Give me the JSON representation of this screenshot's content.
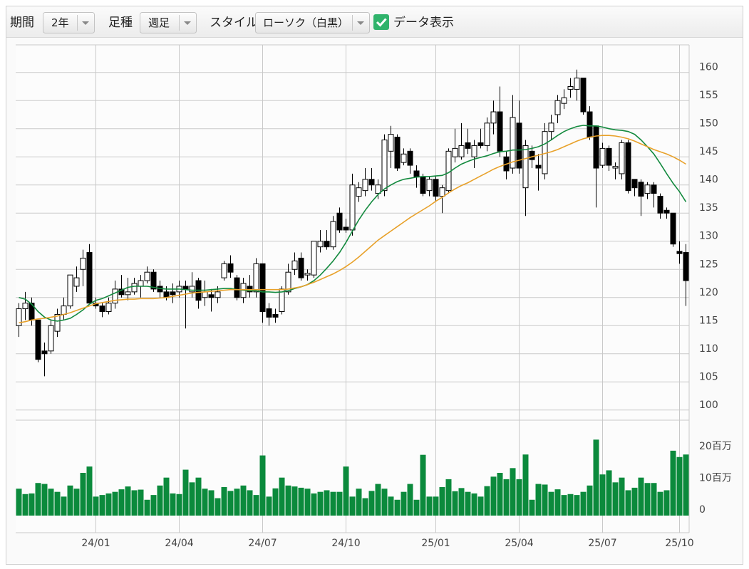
{
  "toolbar": {
    "period_label": "期間",
    "period": "2年",
    "interval_label": "足種",
    "interval": "週足",
    "style_label": "スタイル",
    "style": "ローソク（白黒）",
    "data_label": "データ表示",
    "data_checked": true
  },
  "chart_data": [
    {
      "type": "candlestick",
      "categories": [
        null,
        null,
        null,
        null,
        null,
        null,
        null,
        null,
        null,
        null,
        null,
        null,
        "24/01",
        null,
        null,
        null,
        null,
        null,
        null,
        null,
        null,
        null,
        null,
        null,
        null,
        "24/04",
        null,
        null,
        null,
        null,
        null,
        null,
        null,
        null,
        null,
        null,
        null,
        null,
        "24/07",
        null,
        null,
        null,
        null,
        null,
        null,
        null,
        null,
        null,
        null,
        null,
        null,
        "24/10",
        null,
        null,
        null,
        null,
        null,
        null,
        null,
        null,
        null,
        null,
        null,
        null,
        null,
        "25/01",
        null,
        null,
        null,
        null,
        null,
        null,
        null,
        null,
        null,
        null,
        null,
        null,
        "25/04",
        null,
        null,
        null,
        null,
        null,
        null,
        null,
        null,
        null,
        null,
        null,
        null,
        "25/07",
        null,
        null,
        null,
        null,
        null,
        null,
        null,
        null,
        null,
        null,
        null,
        "25/10",
        null
      ],
      "open": [
        115,
        118,
        119,
        116,
        110.5,
        110.5,
        114,
        117,
        118.5,
        122,
        125,
        128,
        119,
        118.5,
        117.5,
        119,
        121.5,
        120.5,
        121,
        122,
        123,
        124.5,
        122,
        121,
        121,
        121,
        122,
        121,
        123,
        120,
        120.5,
        120,
        123.5,
        126,
        123.5,
        120,
        122,
        121,
        126,
        118,
        117,
        117.5,
        121,
        125,
        127,
        124,
        124,
        129,
        130,
        129,
        135,
        132.5,
        132,
        138,
        139,
        141,
        138.5,
        139,
        146,
        148.5,
        144,
        146,
        142.5,
        141.5,
        139,
        141,
        138,
        139,
        145,
        145,
        147.5,
        145,
        147.5,
        147,
        151,
        153,
        145,
        143,
        151,
        139.5,
        146,
        143.5,
        142,
        149.5,
        152.5,
        154.5,
        157,
        157,
        159,
        153,
        150.5,
        143.5,
        146.5,
        143,
        142,
        147.5,
        141,
        140.5,
        138.5,
        140,
        138,
        135.5,
        135,
        128.2,
        128
      ],
      "high": [
        119,
        121,
        120,
        116,
        112,
        116,
        118,
        120,
        124,
        125.5,
        128.5,
        129.5,
        120,
        119,
        120,
        123,
        124,
        123.5,
        123.5,
        124,
        125.5,
        125,
        123,
        122,
        122.5,
        123,
        123,
        124.5,
        123.5,
        123,
        121.5,
        122,
        126.5,
        127.5,
        124,
        123.5,
        124,
        127,
        126,
        119,
        118,
        122,
        126,
        128,
        128,
        125,
        130,
        132,
        132,
        134.5,
        136,
        134,
        142,
        140.5,
        143,
        143,
        141,
        149,
        150.5,
        149,
        146.5,
        146.5,
        143.5,
        142,
        141.5,
        141.5,
        140,
        146.5,
        150,
        151,
        150,
        148,
        150,
        152,
        155,
        157.5,
        146,
        156,
        155,
        148,
        147,
        145.5,
        151,
        152.5,
        156,
        157,
        159,
        160.5,
        159,
        154,
        150.5,
        147.5,
        147,
        144,
        148,
        148,
        141,
        141,
        140.5,
        140.5,
        138.5,
        136,
        135,
        130,
        129.5
      ],
      "low": [
        113,
        116,
        115,
        108.5,
        106,
        110,
        113,
        116,
        118,
        121,
        122,
        119,
        118,
        116.5,
        117,
        118,
        120,
        119.5,
        120.5,
        120,
        122.5,
        121,
        120,
        119.5,
        119,
        120,
        114.5,
        120,
        118,
        118.5,
        117.5,
        119,
        123,
        123.5,
        119.5,
        119,
        120,
        120,
        115.5,
        115,
        115.5,
        117,
        120.5,
        124,
        123,
        123,
        123.5,
        128,
        128.5,
        128.5,
        131.5,
        131.5,
        131,
        137,
        138,
        139,
        137.5,
        138,
        143,
        142.5,
        143.5,
        142,
        139.5,
        138,
        138,
        137,
        135,
        138.5,
        144,
        144.5,
        145.5,
        143,
        146.5,
        146,
        149,
        145,
        141,
        142,
        142,
        134.5,
        143,
        139,
        141,
        148,
        151,
        153.5,
        155.5,
        155,
        152.5,
        148,
        136,
        143,
        142.5,
        141,
        141,
        138.5,
        138,
        134.5,
        137.5,
        136,
        134,
        134,
        129,
        126,
        118.5
      ],
      "close": [
        118,
        119,
        116,
        109,
        110,
        115,
        117,
        118.5,
        124,
        123.5,
        127,
        119,
        118.5,
        117.5,
        119,
        121.5,
        120.5,
        121,
        122.5,
        123,
        124.5,
        121.5,
        121,
        120,
        120.5,
        122,
        121.5,
        122,
        119.5,
        121,
        120,
        121,
        126,
        124.5,
        120,
        122.5,
        121,
        126,
        117.5,
        116.5,
        116.5,
        121.5,
        124.5,
        126.5,
        123.5,
        124.3,
        130,
        130,
        129,
        133.5,
        132,
        132,
        140,
        139.5,
        141,
        140,
        140,
        148,
        149,
        143,
        145.5,
        143.5,
        141.5,
        138.5,
        141,
        138,
        139.5,
        146,
        146.5,
        147,
        146.5,
        147,
        147,
        151,
        153,
        146,
        142.5,
        152,
        143,
        147,
        144.5,
        143,
        149.5,
        151,
        155,
        155.5,
        157.5,
        159,
        153,
        148.5,
        143,
        146.5,
        143.5,
        143.3,
        147.5,
        139,
        139.5,
        138,
        140,
        138.5,
        135,
        135,
        129.5,
        127.8,
        123
      ],
      "up_color": "#ffffff",
      "down_color": "#000000",
      "lines": [
        {
          "color": "#138a3e",
          "values": [
            120,
            119.7,
            118.8,
            117.5,
            116.5,
            116,
            115.8,
            116,
            116.3,
            117,
            117.8,
            118.8,
            119.5,
            119.8,
            120.3,
            120.8,
            121.3,
            121.8,
            122,
            122,
            122,
            121.8,
            121.6,
            121.5,
            121.5,
            121.5,
            121.4,
            121.3,
            121.3,
            121.3,
            121.4,
            121.5,
            121.6,
            121.6,
            121.4,
            121.3,
            121.2,
            121.2,
            121,
            121,
            120.9,
            121,
            121.2,
            121.6,
            121.9,
            122.3,
            123,
            124,
            125.2,
            126.5,
            128,
            129.8,
            131.8,
            133.8,
            135.5,
            137,
            138.3,
            139.3,
            140,
            140.6,
            141,
            141.2,
            141.4,
            141.5,
            141.5,
            141.6,
            141.7,
            142.2,
            143,
            143.7,
            144.2,
            144.6,
            144.9,
            145.2,
            145.6,
            145.9,
            146,
            146.2,
            146.2,
            146.3,
            146.5,
            146.8,
            147.3,
            148,
            148.8,
            149.5,
            150,
            150.4,
            150.6,
            150.5,
            150.5,
            150.3,
            150,
            149.8,
            149.7,
            149.5,
            149,
            148,
            146.8,
            145.5,
            143.8,
            142,
            140.3,
            138.8,
            137
          ]
        },
        {
          "color": "#e8a12a",
          "values": [
            115.5,
            115.7,
            116,
            116.2,
            116.3,
            116.5,
            116.7,
            117,
            117.3,
            117.7,
            118.1,
            118.5,
            118.9,
            119.1,
            119.3,
            119.5,
            119.6,
            119.7,
            119.7,
            119.8,
            119.8,
            119.8,
            119.9,
            120,
            120.2,
            120.4,
            120.6,
            120.8,
            120.9,
            121,
            121.1,
            121.2,
            121.3,
            121.4,
            121.4,
            121.4,
            121.4,
            121.4,
            121.4,
            121.4,
            121.4,
            121.4,
            121.5,
            121.7,
            121.9,
            122.3,
            122.7,
            123.2,
            123.7,
            124.2,
            124.8,
            125.5,
            126.3,
            127.2,
            128.2,
            129.2,
            130.2,
            131,
            131.8,
            132.6,
            133.4,
            134.2,
            134.9,
            135.6,
            136.3,
            137.1,
            137.8,
            138.6,
            139.3,
            139.9,
            140.4,
            141,
            141.6,
            142.2,
            142.8,
            143.3,
            143.7,
            144.1,
            144.4,
            144.7,
            145,
            145.3,
            145.6,
            145.9,
            146.3,
            146.8,
            147.3,
            147.8,
            148.2,
            148.5,
            148.7,
            148.8,
            148.8,
            148.7,
            148.5,
            148.2,
            147.8,
            147.3,
            146.8,
            146.3,
            145.9,
            145.5,
            145,
            144.4,
            143.7
          ]
        }
      ],
      "ylim": [
        98.2,
        164.9
      ],
      "yticks": [
        100,
        105,
        110,
        115,
        120,
        125,
        130,
        135,
        140,
        145,
        150,
        155,
        160
      ],
      "grid": true
    },
    {
      "type": "bar",
      "color": "#0b8a3c",
      "values": [
        8.5,
        6.8,
        7,
        10.3,
        10,
        8.5,
        7.5,
        6,
        9.5,
        8.5,
        13.5,
        15.5,
        6,
        6.5,
        7,
        7.5,
        8.3,
        9.2,
        8,
        8.2,
        5,
        6.5,
        9.5,
        12,
        7,
        6.8,
        14.5,
        10.5,
        12,
        8.5,
        8,
        5.5,
        9,
        7.8,
        8.5,
        9.5,
        8,
        6.5,
        19,
        6,
        8.6,
        12,
        9.5,
        9.2,
        8.8,
        8.5,
        7,
        7.5,
        8,
        7.5,
        7.5,
        15.5,
        6,
        8.5,
        5.5,
        7.8,
        10,
        8.5,
        6,
        5,
        7.5,
        10,
        5,
        19.2,
        6,
        6,
        9,
        11.5,
        7.7,
        8.7,
        7.5,
        7,
        6,
        9.3,
        12.3,
        13.5,
        11.5,
        15,
        11.5,
        19.3,
        5,
        10,
        9.8,
        7.5,
        8.3,
        6.5,
        6.8,
        6.5,
        7.5,
        9.5,
        24,
        13,
        14.3,
        10.5,
        12,
        8,
        8.8,
        12,
        10.3,
        10.3,
        7.5,
        8,
        20.5,
        18.5,
        19.3
      ],
      "ylim": [
        0,
        27.9
      ],
      "yticks": [
        0,
        {
          "value": 10,
          "label": "10百万"
        },
        {
          "value": 20,
          "label": "20百万"
        }
      ]
    }
  ]
}
